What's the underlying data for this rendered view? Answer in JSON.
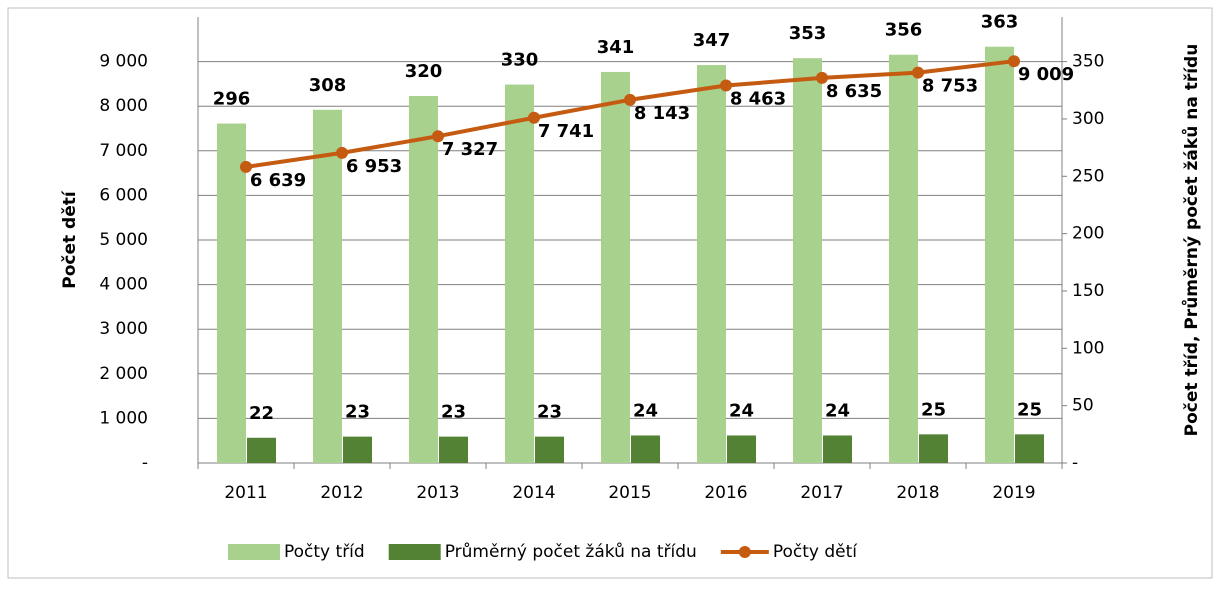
{
  "chart_data": {
    "type": "bar",
    "categories": [
      "2011",
      "2012",
      "2013",
      "2014",
      "2015",
      "2016",
      "2017",
      "2018",
      "2019"
    ],
    "series": [
      {
        "name": "Počty tříd",
        "color": "#a9d18e",
        "axis": "y2",
        "values": [
          296,
          308,
          320,
          330,
          341,
          347,
          353,
          356,
          363
        ]
      },
      {
        "name": "Průměrný počet žáků na třídu",
        "color": "#548235",
        "axis": "y2",
        "values": [
          22,
          23,
          23,
          23,
          24,
          24,
          24,
          25,
          25
        ]
      },
      {
        "name": "Počty dětí",
        "type": "line",
        "color": "#c55a11",
        "axis": "y",
        "values": [
          6639,
          6953,
          7327,
          7741,
          8143,
          8463,
          8635,
          8753,
          9009
        ],
        "value_labels": [
          "6 639",
          "6 953",
          "7 327",
          "7 741",
          "8 143",
          "8 463",
          "8 635",
          "8 753",
          "9 009"
        ]
      }
    ],
    "y_label": "Počet dětí",
    "y2_label": "Počet tříd, Průměrný počet žáků na třídu",
    "ylim": [
      0,
      10000
    ],
    "yticks": [
      {
        "value": 0,
        "label": "-"
      },
      {
        "value": 1000,
        "label": "1 000"
      },
      {
        "value": 2000,
        "label": "2 000"
      },
      {
        "value": 3000,
        "label": "3 000"
      },
      {
        "value": 4000,
        "label": "4 000"
      },
      {
        "value": 5000,
        "label": "5 000"
      },
      {
        "value": 6000,
        "label": "6 000"
      },
      {
        "value": 7000,
        "label": "7 000"
      },
      {
        "value": 8000,
        "label": "8 000"
      },
      {
        "value": 9000,
        "label": "9 000"
      }
    ],
    "y2lim": [
      0,
      388.9
    ],
    "y2ticks": [
      {
        "value": 0,
        "label": "-"
      },
      50,
      100,
      150,
      200,
      250,
      300,
      350
    ],
    "grid": true,
    "legend": "bottom"
  }
}
